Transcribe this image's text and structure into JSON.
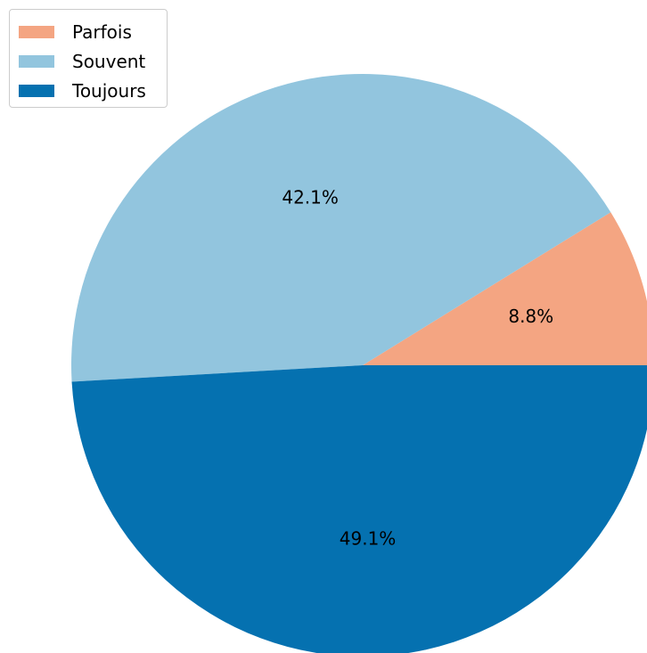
{
  "chart_data": {
    "type": "pie",
    "title": "",
    "start_angle_deg": 0,
    "direction": "counterclockwise",
    "legend_position": "top-left",
    "slices": [
      {
        "name": "Parfois",
        "value": 8.8,
        "label": "8.8%",
        "color": "#f4a582"
      },
      {
        "name": "Souvent",
        "value": 42.1,
        "label": "42.1%",
        "color": "#92c5de"
      },
      {
        "name": "Toujours",
        "value": 49.1,
        "label": "49.1%",
        "color": "#0571b0"
      }
    ]
  }
}
